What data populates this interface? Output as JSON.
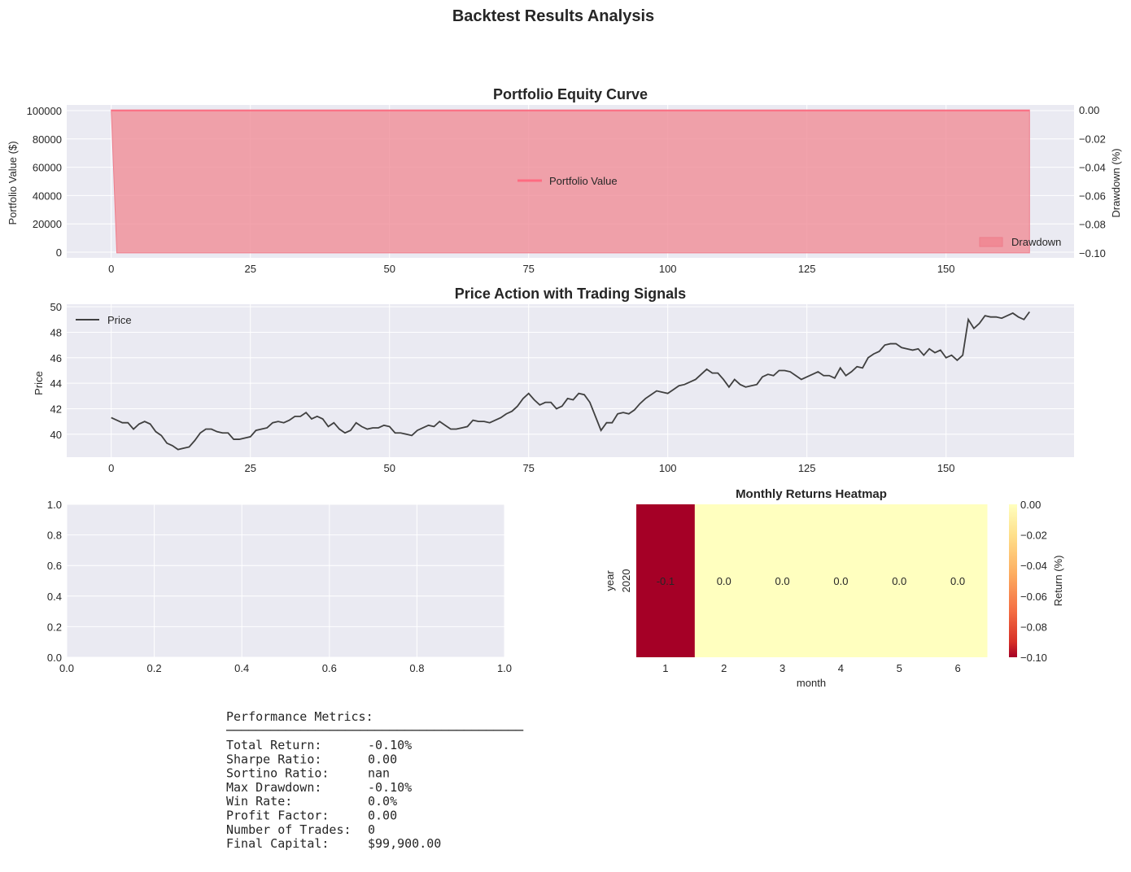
{
  "figure": {
    "title": "Backtest Results Analysis"
  },
  "chart_data": [
    {
      "type": "area",
      "title": "Portfolio Equity Curve",
      "xlabel": "",
      "ylabel": "Portfolio Value ($)",
      "ylabel_right": "Drawdown (%)",
      "xlim": [
        -8,
        173
      ],
      "ylim": [
        -4000,
        104000
      ],
      "ylim_right": [
        -0.1035,
        0.0035
      ],
      "x_ticks": [
        0,
        25,
        50,
        75,
        100,
        125,
        150
      ],
      "y_ticks": [
        0,
        20000,
        40000,
        60000,
        80000,
        100000
      ],
      "y_ticks_right": [
        "0.00",
        "−0.02",
        "−0.04",
        "−0.06",
        "−0.08",
        "−0.10"
      ],
      "series": [
        {
          "name": "Portfolio Value",
          "type": "line",
          "axis": "left",
          "color": "#ff6b81",
          "x_range": [
            0,
            165
          ],
          "first_value": 100000,
          "rest_value": 99900
        },
        {
          "name": "Drawdown",
          "type": "area",
          "axis": "right",
          "color": "#f08a95",
          "x_range": [
            0,
            165
          ],
          "first_value": 0.0,
          "rest_value": -0.1
        }
      ],
      "legend": [
        "Portfolio Value",
        "Drawdown"
      ],
      "grid": true
    },
    {
      "type": "line",
      "title": "Price Action with Trading Signals",
      "xlabel": "",
      "ylabel": "Price",
      "xlim": [
        -8,
        173
      ],
      "ylim": [
        38.2,
        50.2
      ],
      "x_ticks": [
        0,
        25,
        50,
        75,
        100,
        125,
        150
      ],
      "y_ticks": [
        40,
        42,
        44,
        46,
        48,
        50
      ],
      "series": [
        {
          "name": "Price",
          "color": "#404040",
          "values": [
            41.3,
            41.1,
            40.9,
            40.9,
            40.4,
            40.8,
            41.0,
            40.8,
            40.2,
            39.9,
            39.3,
            39.1,
            38.8,
            38.9,
            39.0,
            39.5,
            40.1,
            40.4,
            40.4,
            40.2,
            40.1,
            40.1,
            39.6,
            39.6,
            39.7,
            39.8,
            40.3,
            40.4,
            40.5,
            40.9,
            41.0,
            40.9,
            41.1,
            41.4,
            41.4,
            41.7,
            41.2,
            41.4,
            41.2,
            40.6,
            40.9,
            40.4,
            40.1,
            40.3,
            40.9,
            40.6,
            40.4,
            40.5,
            40.5,
            40.7,
            40.6,
            40.1,
            40.1,
            40.0,
            39.9,
            40.3,
            40.5,
            40.7,
            40.6,
            41.0,
            40.7,
            40.4,
            40.4,
            40.5,
            40.6,
            41.1,
            41.0,
            41.0,
            40.9,
            41.1,
            41.3,
            41.6,
            41.8,
            42.2,
            42.8,
            43.2,
            42.7,
            42.3,
            42.5,
            42.5,
            42.0,
            42.2,
            42.8,
            42.7,
            43.2,
            43.1,
            42.5,
            41.4,
            40.3,
            40.9,
            40.9,
            41.6,
            41.7,
            41.6,
            41.9,
            42.4,
            42.8,
            43.1,
            43.4,
            43.3,
            43.2,
            43.5,
            43.8,
            43.9,
            44.1,
            44.3,
            44.7,
            45.1,
            44.8,
            44.8,
            44.3,
            43.7,
            44.3,
            43.9,
            43.7,
            43.8,
            43.9,
            44.5,
            44.7,
            44.6,
            45.0,
            45.0,
            44.9,
            44.6,
            44.3,
            44.5,
            44.7,
            44.9,
            44.6,
            44.6,
            44.4,
            45.2,
            44.6,
            44.9,
            45.3,
            45.2,
            46.0,
            46.3,
            46.5,
            47.0,
            47.1,
            47.1,
            46.8,
            46.7,
            46.6,
            46.7,
            46.2,
            46.7,
            46.4,
            46.6,
            46.0,
            46.2,
            45.8,
            46.2,
            49.0,
            48.3,
            48.7,
            49.3,
            49.2,
            49.2,
            49.1,
            49.3,
            49.5,
            49.2,
            49.0,
            49.6
          ]
        }
      ],
      "legend": [
        "Price"
      ],
      "grid": true
    },
    {
      "type": "line",
      "title": "",
      "xlabel": "",
      "ylabel": "",
      "xlim": [
        0,
        1
      ],
      "ylim": [
        0,
        1
      ],
      "x_ticks": [
        "0.0",
        "0.2",
        "0.4",
        "0.6",
        "0.8",
        "1.0"
      ],
      "y_ticks": [
        "0.0",
        "0.2",
        "0.4",
        "0.6",
        "0.8",
        "1.0"
      ],
      "series": [],
      "grid": true
    },
    {
      "type": "heatmap",
      "title": "Monthly Returns Heatmap",
      "xlabel": "month",
      "ylabel": "year",
      "colorbar_label": "Return (%)",
      "colormap": "RdYlGn",
      "vmin": -0.1,
      "vmax": 0.0,
      "colorbar_ticks": [
        "0.00",
        "−0.02",
        "−0.04",
        "−0.06",
        "−0.08",
        "−0.10"
      ],
      "rows": [
        "2020"
      ],
      "columns": [
        "1",
        "2",
        "3",
        "4",
        "5",
        "6"
      ],
      "values": [
        [
          -0.1,
          0.0,
          0.0,
          0.0,
          0.0,
          0.0
        ]
      ],
      "annotations": [
        [
          "-0.1",
          "0.0",
          "0.0",
          "0.0",
          "0.0",
          "0.0"
        ]
      ],
      "colors": {
        "low": "#a50026",
        "high": "#ffffbf"
      }
    }
  ],
  "metrics": {
    "header": "Performance Metrics:",
    "rule": "────────────────────────────────────────",
    "rows": [
      {
        "label": "Total Return:",
        "value": "-0.10%"
      },
      {
        "label": "Sharpe Ratio:",
        "value": "0.00"
      },
      {
        "label": "Sortino Ratio:",
        "value": "nan"
      },
      {
        "label": "Max Drawdown:",
        "value": "-0.10%"
      },
      {
        "label": "Win Rate:",
        "value": "0.0%"
      },
      {
        "label": "Profit Factor:",
        "value": "0.00"
      },
      {
        "label": "Number of Trades:",
        "value": "0"
      },
      {
        "label": "Final Capital:",
        "value": "$99,900.00"
      }
    ]
  },
  "style": {
    "axes_bg": "#eaeaf2",
    "grid_color": "#ffffff",
    "text_color": "#262626"
  }
}
